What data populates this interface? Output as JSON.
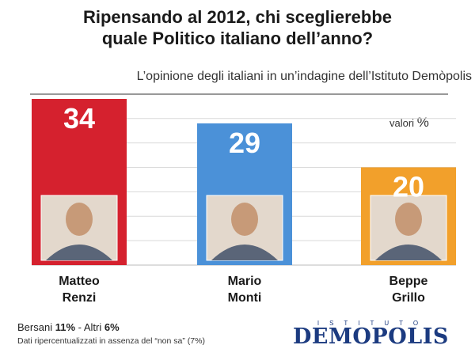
{
  "title_line1": "Ripensando al 2012, chi sceglierebbe",
  "title_line2": "quale Politico italiano dell’anno?",
  "subtitle": "L’opinione degli italiani in un’indagine dell’Istituto Demòpolis",
  "unit_label": "valori",
  "unit_symbol": "%",
  "footnote": {
    "bersani_label": "Bersani",
    "bersani_value": "11%",
    "separator": " - ",
    "altri_label": "Altri",
    "altri_value": "6%",
    "note": "Dati ripercentualizzati in assenza del “non sa” (7%)"
  },
  "logo": {
    "top_text": "ISTITUTO",
    "main_text": "DEMOPOLIS"
  },
  "chart_data": {
    "type": "bar",
    "categories": [
      "Matteo Renzi",
      "Mario Monti",
      "Beppe Grillo"
    ],
    "label_lines": [
      [
        "Matteo",
        "Renzi"
      ],
      [
        "Mario",
        "Monti"
      ],
      [
        "Beppe",
        "Grillo"
      ]
    ],
    "values": [
      34,
      29,
      20
    ],
    "value_labels": [
      "34",
      "29",
      "20"
    ],
    "colors": [
      "#d5212e",
      "#4b91d8",
      "#f2a02b"
    ],
    "ylim": [
      0,
      34
    ],
    "grid": true,
    "xlabel": "",
    "ylabel": ""
  }
}
